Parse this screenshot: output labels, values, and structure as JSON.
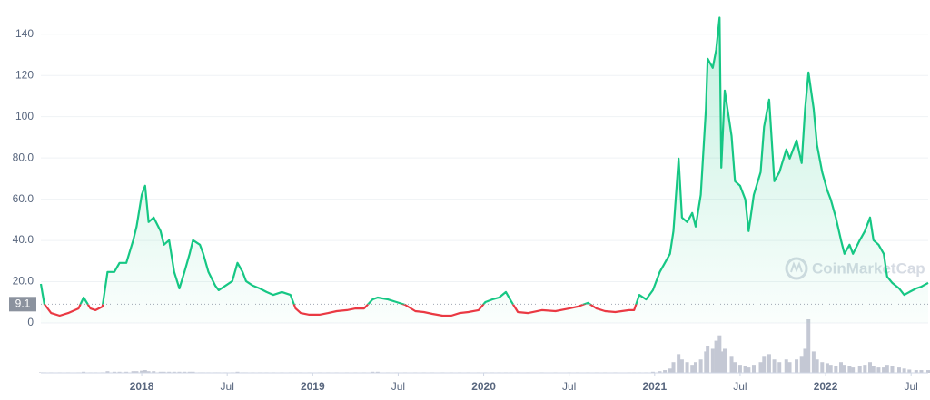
{
  "chart_data": {
    "type": "line",
    "watermark": "CoinMarketCap",
    "x": [
      2017.41,
      2017.43,
      2017.47,
      2017.52,
      2017.57,
      2017.63,
      2017.66,
      2017.7,
      2017.73,
      2017.77,
      2017.8,
      2017.84,
      2017.87,
      2017.91,
      2017.95,
      2017.97,
      2018.0,
      2018.02,
      2018.04,
      2018.07,
      2018.11,
      2018.13,
      2018.16,
      2018.19,
      2018.22,
      2018.25,
      2018.28,
      2018.3,
      2018.34,
      2018.36,
      2018.39,
      2018.43,
      2018.45,
      2018.49,
      2018.53,
      2018.56,
      2018.59,
      2018.61,
      2018.65,
      2018.69,
      2018.73,
      2018.77,
      2018.82,
      2018.87,
      2018.9,
      2018.93,
      2018.98,
      2019.04,
      2019.09,
      2019.14,
      2019.2,
      2019.25,
      2019.3,
      2019.35,
      2019.38,
      2019.44,
      2019.49,
      2019.54,
      2019.6,
      2019.65,
      2019.7,
      2019.76,
      2019.81,
      2019.86,
      2019.91,
      2019.97,
      2020.01,
      2020.05,
      2020.09,
      2020.13,
      2020.16,
      2020.2,
      2020.26,
      2020.34,
      2020.42,
      2020.5,
      2020.55,
      2020.61,
      2020.66,
      2020.71,
      2020.77,
      2020.85,
      2020.88,
      2020.91,
      2020.95,
      2020.99,
      2021.03,
      2021.06,
      2021.09,
      2021.11,
      2021.14,
      2021.16,
      2021.19,
      2021.22,
      2021.24,
      2021.27,
      2021.3,
      2021.31,
      2021.34,
      2021.36,
      2021.38,
      2021.39,
      2021.41,
      2021.45,
      2021.47,
      2021.5,
      2021.53,
      2021.55,
      2021.58,
      2021.62,
      2021.64,
      2021.67,
      2021.7,
      2021.73,
      2021.77,
      2021.79,
      2021.83,
      2021.86,
      2021.88,
      2021.9,
      2021.93,
      2021.95,
      2021.98,
      2022.01,
      2022.03,
      2022.06,
      2022.09,
      2022.11,
      2022.14,
      2022.16,
      2022.2,
      2022.23,
      2022.26,
      2022.28,
      2022.31,
      2022.34,
      2022.36,
      2022.39,
      2022.43,
      2022.46,
      2022.49,
      2022.53,
      2022.56,
      2022.6
    ],
    "series": [
      {
        "color": "#16c784",
        "below_color": "#ea3943",
        "values": [
          18.9,
          9.2,
          4.8,
          3.5,
          4.8,
          7.0,
          12.3,
          7.0,
          6.2,
          7.9,
          24.7,
          24.7,
          29.1,
          29.1,
          40.1,
          46.7,
          62.1,
          66.5,
          48.9,
          51.1,
          44.5,
          37.9,
          40.1,
          24.7,
          16.7,
          24.7,
          33.5,
          40.1,
          37.9,
          33.5,
          24.7,
          18.1,
          15.9,
          18.1,
          20.3,
          29.1,
          24.7,
          20.3,
          18.1,
          16.7,
          15.0,
          13.6,
          15.0,
          13.6,
          7.0,
          4.8,
          4.0,
          4.0,
          4.8,
          5.7,
          6.2,
          7.0,
          7.0,
          11.4,
          12.3,
          11.4,
          10.1,
          8.8,
          5.7,
          5.3,
          4.4,
          3.5,
          3.5,
          4.8,
          5.3,
          6.2,
          10.1,
          11.4,
          12.3,
          15.0,
          10.6,
          5.3,
          4.8,
          6.2,
          5.7,
          7.0,
          7.9,
          9.7,
          7.0,
          5.7,
          5.3,
          6.2,
          6.2,
          13.6,
          11.4,
          15.9,
          24.7,
          29.1,
          33.5,
          44.5,
          79.7,
          51.1,
          48.9,
          53.3,
          46.7,
          62.1,
          103.9,
          128.1,
          123.7,
          132.5,
          148.0,
          75.3,
          112.7,
          90.7,
          68.7,
          66.5,
          59.9,
          44.5,
          62.1,
          73.1,
          95.1,
          108.3,
          68.7,
          73.1,
          84.1,
          79.7,
          88.5,
          77.5,
          103.9,
          121.5,
          103.9,
          86.3,
          73.1,
          64.3,
          59.9,
          51.1,
          40.1,
          33.5,
          37.9,
          33.5,
          40.1,
          44.5,
          51.1,
          40.1,
          37.9,
          33.5,
          22.5,
          19.4,
          16.7,
          13.6,
          15.0,
          16.7,
          17.6,
          19.4
        ]
      }
    ],
    "volume": {
      "color": "#c4c8d4",
      "lim": [
        0,
        100
      ],
      "values": [
        1,
        1,
        1,
        1,
        1,
        1,
        2,
        1,
        1,
        1,
        3,
        2,
        2,
        2,
        3,
        3,
        4,
        5,
        3,
        3,
        2,
        2,
        2,
        2,
        2,
        2,
        2,
        2,
        1,
        1,
        1,
        1,
        1,
        1,
        1,
        2,
        1,
        1,
        1,
        1,
        1,
        1,
        1,
        1,
        1,
        1,
        1,
        1,
        1,
        1,
        1,
        1,
        1,
        2,
        2,
        1,
        1,
        1,
        1,
        1,
        1,
        1,
        1,
        1,
        1,
        1,
        1,
        1,
        1,
        1,
        1,
        1,
        1,
        1,
        1,
        1,
        1,
        1,
        1,
        1,
        1,
        1,
        1,
        1,
        1,
        2,
        3,
        5,
        8,
        20,
        35,
        25,
        20,
        15,
        20,
        25,
        40,
        50,
        45,
        60,
        70,
        40,
        45,
        30,
        20,
        15,
        12,
        10,
        15,
        20,
        30,
        35,
        25,
        20,
        25,
        20,
        25,
        30,
        45,
        100,
        40,
        25,
        20,
        18,
        15,
        12,
        20,
        15,
        12,
        10,
        12,
        15,
        20,
        12,
        10,
        10,
        15,
        12,
        10,
        8,
        6,
        5,
        5,
        5
      ]
    },
    "reference": 9.1,
    "xlim": [
      2017.41,
      2022.6
    ],
    "xticks": [
      2018,
      {
        "value": 2018.5,
        "label": "Jul"
      },
      2019,
      {
        "value": 2019.5,
        "label": "Jul"
      },
      2020,
      {
        "value": 2020.5,
        "label": "Jul"
      },
      2021,
      {
        "value": 2021.5,
        "label": "Jul"
      },
      2022,
      {
        "value": 2022.5,
        "label": "Jul"
      }
    ],
    "ylim": [
      0,
      150
    ],
    "yticks": [
      0,
      {
        "value": 20,
        "label": "20.0"
      },
      {
        "value": 40,
        "label": "40.0"
      },
      {
        "value": 60,
        "label": "60.0"
      },
      {
        "value": 80,
        "label": "80.0"
      },
      100,
      120,
      140
    ],
    "grid": true
  }
}
